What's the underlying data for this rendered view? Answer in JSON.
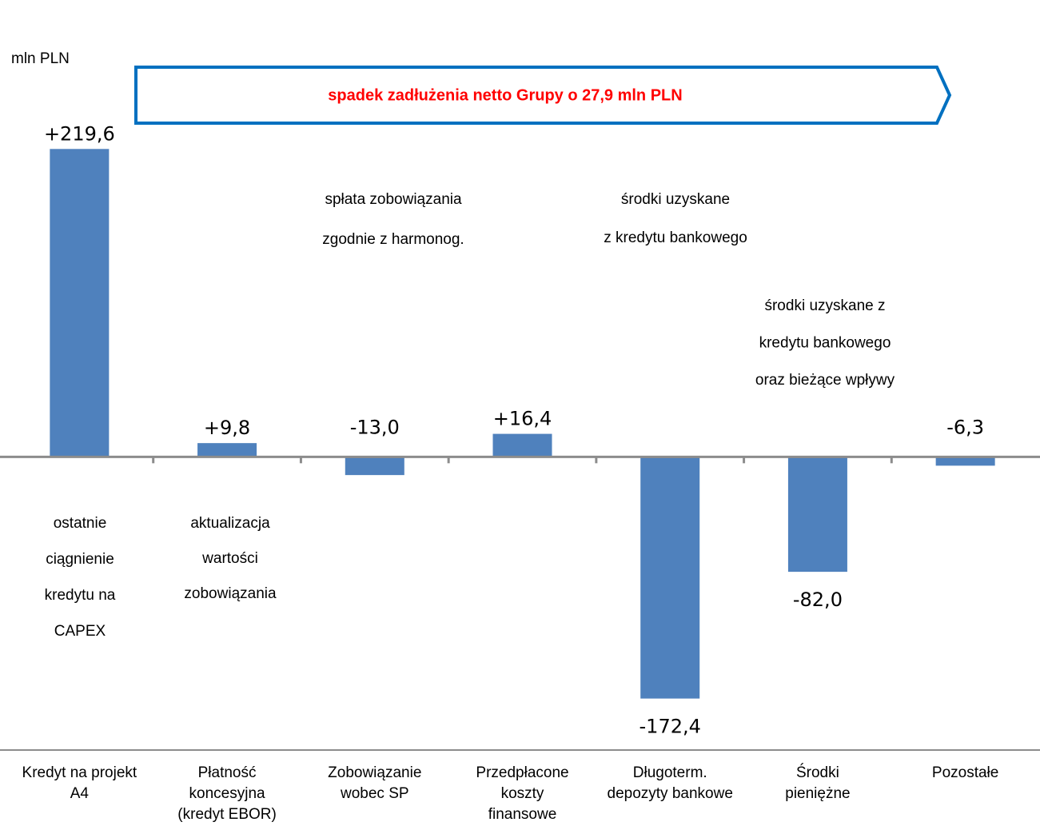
{
  "chart_data": {
    "type": "bar",
    "unit_label": "mln PLN",
    "title": "spadek zadłużenia netto Grupy o 27,9 mln PLN",
    "categories": [
      [
        "Kredyt na projekt",
        "A4"
      ],
      [
        "Płatność",
        "koncesyjna",
        "(kredyt EBOR)"
      ],
      [
        "Zobowiązanie",
        "wobec SP"
      ],
      [
        "Przedpłacone",
        "koszty",
        "finansowe"
      ],
      [
        "Długoterm.",
        "depozyty bankowe"
      ],
      [
        "Środki",
        "pieniężne"
      ],
      [
        "Pozostałe"
      ]
    ],
    "values": [
      219.6,
      9.8,
      -13.0,
      16.4,
      -172.4,
      -82.0,
      -6.3
    ],
    "value_labels": [
      "+219,6",
      "+9,8",
      "-13,0",
      "+16,4",
      "-172,4",
      "-82,0",
      "-6,3"
    ],
    "color": "#4f81bd",
    "ylim": [
      -200,
      250
    ],
    "annotations": [
      [
        "ostatnie",
        "ciągnienie",
        "kredytu na",
        "CAPEX"
      ],
      [
        "aktualizacja",
        "wartości",
        "zobowiązania"
      ],
      [
        "spłata zobowiązania",
        "zgodnie z harmonog."
      ],
      [
        "środki uzyskane",
        "z kredytu bankowego"
      ],
      [
        "środki uzyskane z",
        "kredytu bankowego",
        "oraz bieżące wpływy"
      ]
    ]
  }
}
